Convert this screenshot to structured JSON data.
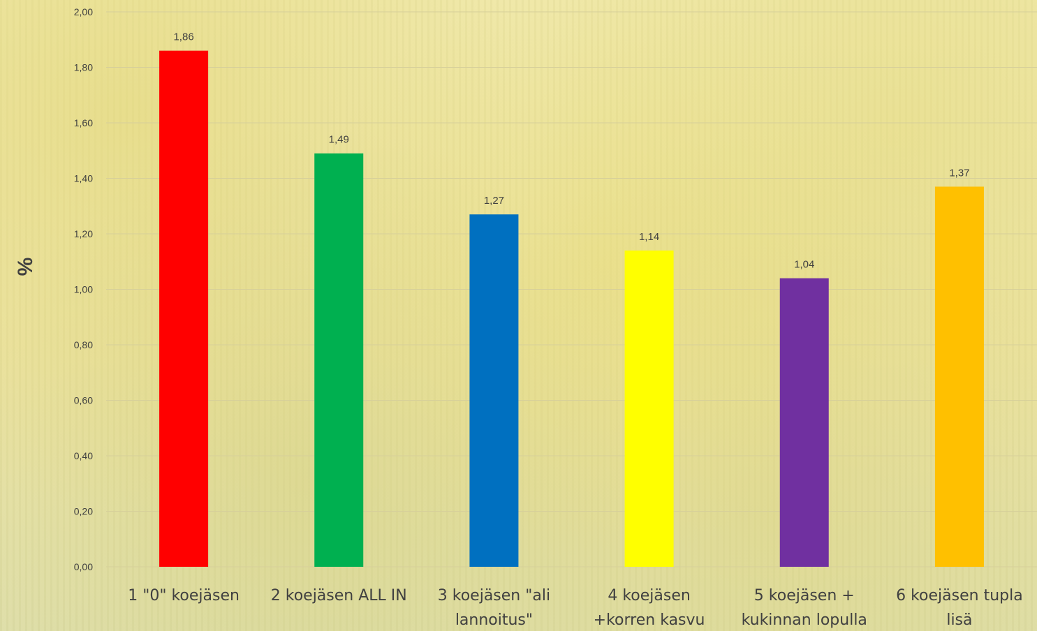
{
  "chart_data": {
    "type": "bar",
    "title": "",
    "xlabel": "",
    "ylabel": "%",
    "ylim": [
      0,
      2
    ],
    "y_ticks": [
      "0,00",
      "0,20",
      "0,40",
      "0,60",
      "0,80",
      "1,00",
      "1,20",
      "1,40",
      "1,60",
      "1,80",
      "2,00"
    ],
    "grid": true,
    "legend": "none",
    "categories": [
      "1 \"0\" koejäsen",
      "2 koejäsen ALL IN",
      "3 koejäsen \"ali lannoitus\"",
      "4 koejäsen +korren kasvu",
      "5 koejäsen + kukinnan lopulla",
      "6 koejäsen tupla lisä"
    ],
    "category_lines": [
      [
        "1 \"0\" koejäsen"
      ],
      [
        "2 koejäsen ALL IN"
      ],
      [
        "3 koejäsen \"ali",
        "lannoitus\""
      ],
      [
        "4 koejäsen",
        "+korren kasvu"
      ],
      [
        "5 koejäsen +",
        "kukinnan lopulla"
      ],
      [
        "6 koejäsen tupla",
        "lisä"
      ]
    ],
    "values": [
      1.86,
      1.49,
      1.27,
      1.14,
      1.04,
      1.37
    ],
    "data_labels": [
      "1,86",
      "1,49",
      "1,27",
      "1,14",
      "1,04",
      "1,37"
    ],
    "colors": [
      "#ff0000",
      "#00b050",
      "#0070c0",
      "#ffff00",
      "#7030a0",
      "#ffc000"
    ]
  }
}
